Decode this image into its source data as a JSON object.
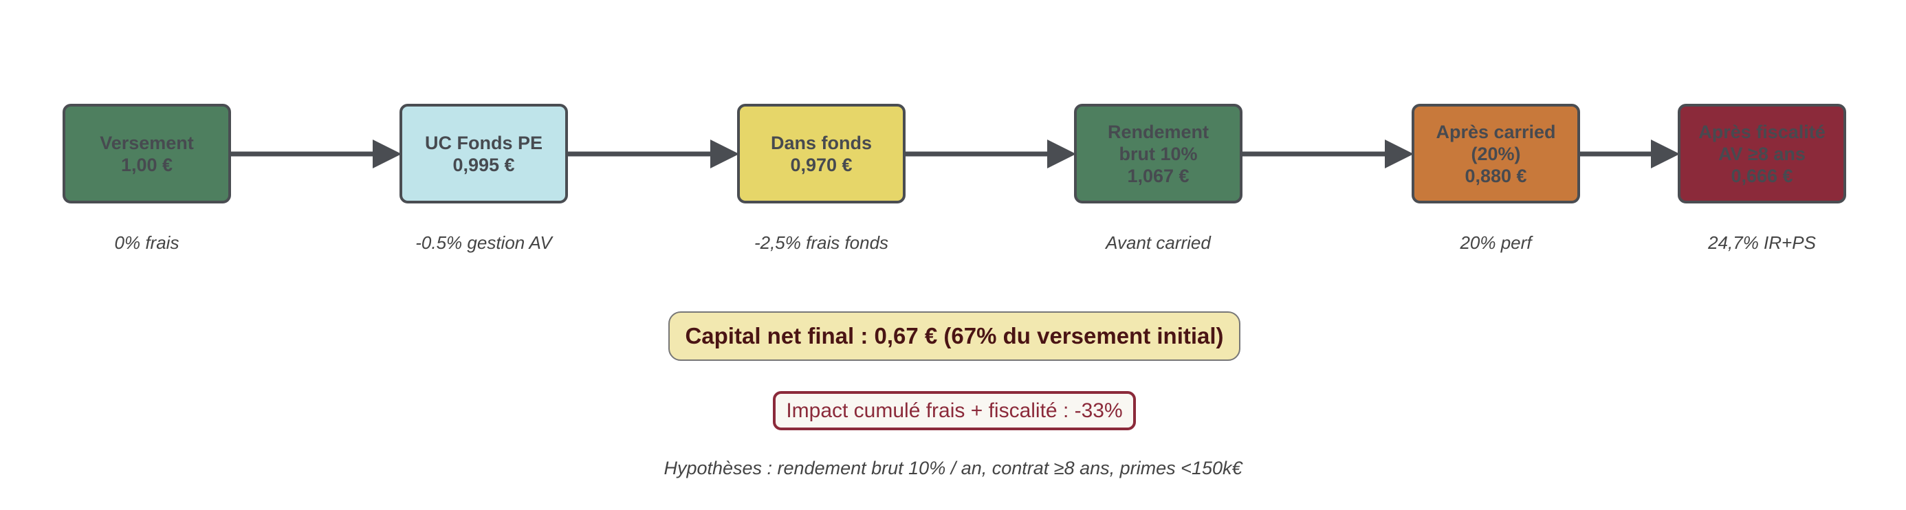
{
  "steps": [
    {
      "label": "Versement\n1,00 €",
      "caption": "0% frais",
      "color": "#4e7f5f"
    },
    {
      "label": "UC Fonds PE\n0,995 €",
      "caption": "-0.5% gestion AV",
      "color": "#bfe4ea"
    },
    {
      "label": "Dans fonds\n0,970 €",
      "caption": "-2,5% frais fonds",
      "color": "#e6d669"
    },
    {
      "label": "Rendement\nbrut 10%\n1,067 €",
      "caption": "Avant carried",
      "color": "#4e7f5f"
    },
    {
      "label": "Après carried\n(20%)\n0,880 €",
      "caption": "20% perf",
      "color": "#c8793b"
    },
    {
      "label": "Après fiscalité\nAV ≥8 ans\n0,666 €",
      "caption": "24,7% IR+PS",
      "color": "#8b2a3a"
    }
  ],
  "summary": {
    "capital": "Capital net final : 0,67 € (67% du versement initial)",
    "impact": "Impact cumulé frais + fiscalité : -33%",
    "hypotheses": "Hypothèses : rendement brut 10% / an, contrat ≥8 ans, primes <150k€"
  }
}
